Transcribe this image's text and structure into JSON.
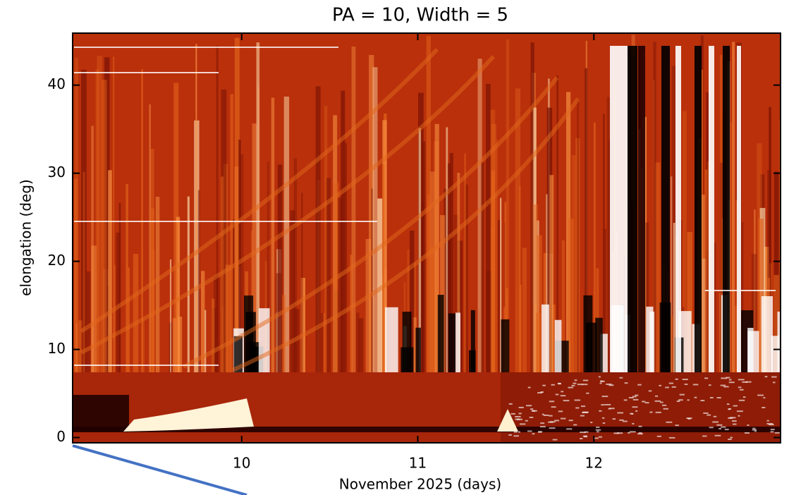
{
  "chart_data": {
    "type": "heatmap",
    "title": "PA = 10, Width = 5",
    "xlabel": "November 2025 (days)",
    "ylabel": "elongation (deg)",
    "xlim": [
      9.04,
      13.06
    ],
    "xticks": [
      10,
      11,
      12
    ],
    "ylim": [
      -0.6,
      45.9
    ],
    "yticks": [
      0,
      10,
      20,
      30,
      40
    ]
  }
}
